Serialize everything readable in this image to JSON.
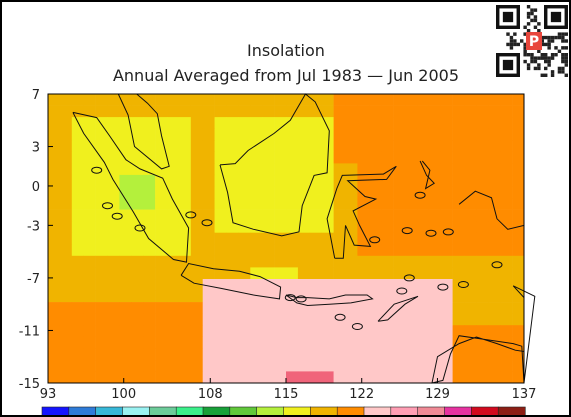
{
  "map": {
    "title": "Insolation",
    "subtitle": "Annual Averaged from Jul 1983 — Jun 2005",
    "lon_ticks": [
      "93",
      "100",
      "108",
      "115",
      "122",
      "129",
      "137"
    ],
    "lat_ticks": [
      "7",
      "3",
      "0",
      "-3",
      "-7",
      "-11",
      "-15"
    ],
    "lon_range": [
      93,
      137
    ],
    "lat_range": [
      -15,
      7
    ],
    "colorbar": [
      "#1414ff",
      "#2e7bd8",
      "#37b8d8",
      "#9af2f2",
      "#6ccc9a",
      "#3af08a",
      "#18a038",
      "#60c83a",
      "#b4f03c",
      "#f0f01e",
      "#f0b400",
      "#ff8c00",
      "#ffc8c8",
      "#ff9eb4",
      "#f08a96",
      "#e632a0",
      "#d20a1e",
      "#8c1e14"
    ],
    "palette": {
      "yellow": "#f0f01e",
      "amber": "#f0b400",
      "orange": "#ff8c00",
      "pink": "#ffc8c8",
      "deep_pink": "#f0647a",
      "green": "#b4f03c",
      "lime": "#7cdc3c"
    }
  },
  "qr": {
    "icon": "qr-code-icon",
    "badge": "P"
  }
}
